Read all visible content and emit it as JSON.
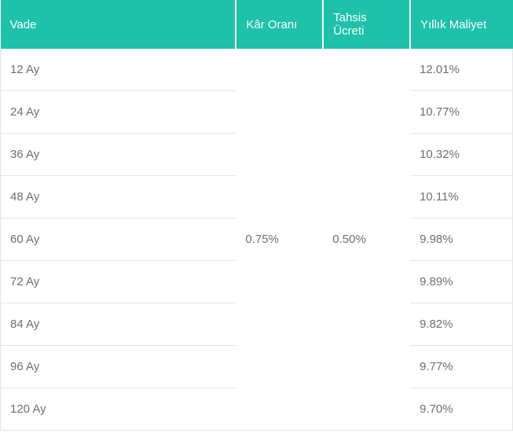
{
  "table": {
    "type": "table",
    "colors": {
      "header_bg": "#1ec1a9",
      "header_fg": "#ffffff",
      "body_fg": "#6f6f6f",
      "border": "#e5e5e5",
      "row_bg": "#ffffff"
    },
    "fonts": {
      "header_size_pt": 11,
      "body_size_pt": 11,
      "header_weight": "400",
      "body_weight": "400"
    },
    "column_widths_pct": [
      46,
      17,
      17,
      20
    ],
    "columns": [
      {
        "key": "vade",
        "label": "Vade"
      },
      {
        "key": "kar_orani",
        "label": "Kâr Oranı"
      },
      {
        "key": "tahsis_ucreti",
        "label": "Tahsis Ücreti"
      },
      {
        "key": "yillik_maliyet",
        "label": "Yıllık Maliyet"
      }
    ],
    "merged": {
      "kar_orani": "0.75%",
      "tahsis_ucreti": "0.50%"
    },
    "rows": [
      {
        "vade": "12 Ay",
        "yillik_maliyet": "12.01%"
      },
      {
        "vade": "24 Ay",
        "yillik_maliyet": "10.77%"
      },
      {
        "vade": "36 Ay",
        "yillik_maliyet": "10.32%"
      },
      {
        "vade": "48 Ay",
        "yillik_maliyet": "10.11%"
      },
      {
        "vade": "60 Ay",
        "yillik_maliyet": "9.98%"
      },
      {
        "vade": "72 Ay",
        "yillik_maliyet": "9.89%"
      },
      {
        "vade": "84 Ay",
        "yillik_maliyet": "9.82%"
      },
      {
        "vade": "96 Ay",
        "yillik_maliyet": "9.77%"
      },
      {
        "vade": "120 Ay",
        "yillik_maliyet": "9.70%"
      }
    ]
  }
}
